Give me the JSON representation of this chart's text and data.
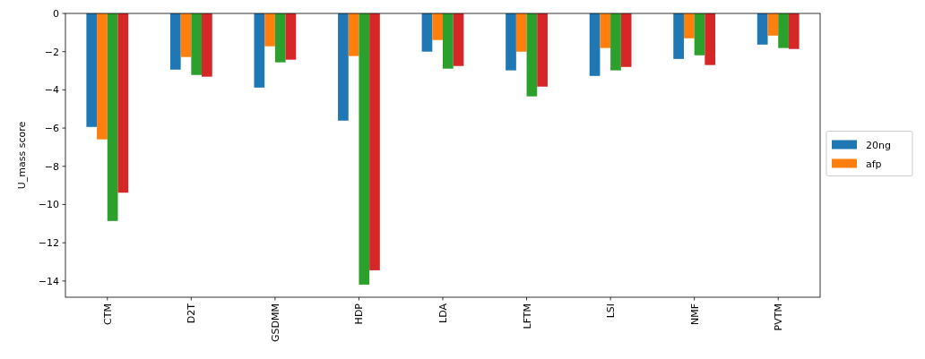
{
  "chart_data": {
    "type": "bar",
    "ylabel": "U_mass score",
    "categories": [
      "CTM",
      "D2T",
      "GSDMM",
      "HDP",
      "LDA",
      "LFTM",
      "LSI",
      "NMF",
      "PVTM"
    ],
    "series": [
      {
        "name": "20ng",
        "color": "#1f77b4",
        "values": [
          -5.94,
          -2.94,
          -3.88,
          -5.61,
          -2.0,
          -2.98,
          -3.27,
          -2.38,
          -1.63
        ]
      },
      {
        "name": "afp",
        "color": "#ff7f0e",
        "values": [
          -6.59,
          -2.28,
          -1.72,
          -2.23,
          -1.39,
          -2.0,
          -1.81,
          -1.3,
          -1.16
        ]
      },
      {
        "color": "#2ca02c",
        "values": [
          -10.86,
          -3.22,
          -2.56,
          -14.19,
          -2.89,
          -4.34,
          -2.98,
          -2.19,
          -1.81
        ]
      },
      {
        "color": "#d62728",
        "values": [
          -9.38,
          -3.31,
          -2.42,
          -13.44,
          -2.75,
          -3.83,
          -2.8,
          -2.7,
          -1.86
        ]
      }
    ],
    "ylim": [
      -14.85,
      0
    ],
    "yticks": [
      0,
      -2,
      -4,
      -6,
      -8,
      -10,
      -12,
      -14
    ],
    "legend": "right"
  }
}
